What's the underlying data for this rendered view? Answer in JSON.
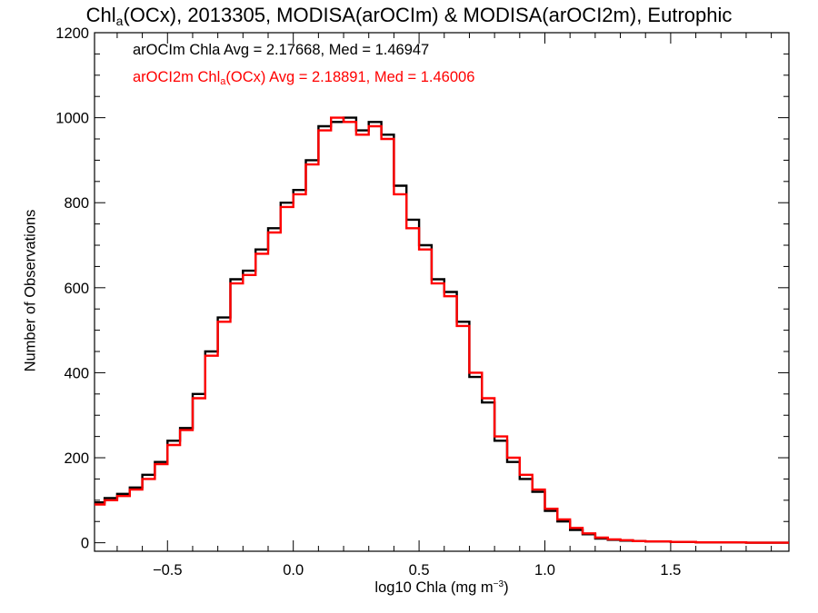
{
  "chart_data": {
    "type": "line",
    "title": {
      "prefix": "Chl",
      "sub": "a",
      "suffix": "(OCx), 2013305, MODISA(arOCIm) & MODISA(arOCI2m), Eutrophic"
    },
    "xlabel": {
      "text": "log10 Chla (mg m",
      "sup": "−3",
      "close": ")"
    },
    "ylabel": "Number of Observations",
    "xlim": [
      -0.79,
      1.97
    ],
    "ylim": [
      -20,
      1200
    ],
    "xticks": [
      -0.5,
      0.0,
      0.5,
      1.0,
      1.5
    ],
    "xtick_labels": [
      "−0.5",
      "0.0",
      "0.5",
      "1.0",
      "1.5"
    ],
    "yticks": [
      0,
      200,
      400,
      600,
      800,
      1000,
      1200
    ],
    "ytick_labels": [
      "0",
      "200",
      "400",
      "600",
      "800",
      "1000",
      "1200"
    ],
    "grid": false,
    "legend_position": "top-left",
    "series": [
      {
        "label_parts": {
          "prefix": "arOCIm Chla Avg = 2.17668, Med = 1.46947"
        },
        "color": "#000000",
        "x": [
          -0.8,
          -0.75,
          -0.7,
          -0.65,
          -0.6,
          -0.55,
          -0.5,
          -0.45,
          -0.4,
          -0.35,
          -0.3,
          -0.25,
          -0.2,
          -0.15,
          -0.1,
          -0.05,
          0.0,
          0.05,
          0.1,
          0.15,
          0.2,
          0.25,
          0.3,
          0.35,
          0.4,
          0.45,
          0.5,
          0.55,
          0.6,
          0.65,
          0.7,
          0.75,
          0.8,
          0.85,
          0.9,
          0.95,
          1.0,
          1.05,
          1.1,
          1.15,
          1.2,
          1.25,
          1.3,
          1.35,
          1.4,
          1.5,
          1.6,
          1.7,
          1.8,
          1.97
        ],
        "y": [
          95,
          105,
          115,
          130,
          160,
          190,
          240,
          270,
          350,
          450,
          530,
          620,
          640,
          690,
          740,
          800,
          830,
          900,
          980,
          990,
          1000,
          970,
          990,
          960,
          840,
          760,
          700,
          620,
          590,
          520,
          390,
          330,
          240,
          190,
          150,
          120,
          75,
          50,
          30,
          20,
          10,
          7,
          5,
          4,
          3,
          2,
          1,
          1,
          0,
          0
        ]
      },
      {
        "label_parts": {
          "prefix": "arOCI2m Chl",
          "sub": "a",
          "suffix": "(OCx) Avg = 2.18891, Med = 1.46006"
        },
        "color": "#ff0000",
        "x": [
          -0.8,
          -0.75,
          -0.7,
          -0.65,
          -0.6,
          -0.55,
          -0.5,
          -0.45,
          -0.4,
          -0.35,
          -0.3,
          -0.25,
          -0.2,
          -0.15,
          -0.1,
          -0.05,
          0.0,
          0.05,
          0.1,
          0.15,
          0.2,
          0.25,
          0.3,
          0.35,
          0.4,
          0.45,
          0.5,
          0.55,
          0.6,
          0.65,
          0.7,
          0.75,
          0.8,
          0.85,
          0.9,
          0.95,
          1.0,
          1.05,
          1.1,
          1.15,
          1.2,
          1.25,
          1.3,
          1.35,
          1.4,
          1.5,
          1.6,
          1.7,
          1.8,
          1.97
        ],
        "y": [
          90,
          100,
          110,
          125,
          150,
          185,
          230,
          265,
          340,
          440,
          520,
          610,
          630,
          680,
          730,
          790,
          820,
          890,
          970,
          1000,
          990,
          960,
          980,
          950,
          820,
          740,
          690,
          610,
          580,
          510,
          400,
          340,
          250,
          200,
          160,
          125,
          80,
          55,
          35,
          22,
          12,
          8,
          6,
          4,
          3,
          2,
          1,
          1,
          0,
          0
        ]
      }
    ]
  }
}
